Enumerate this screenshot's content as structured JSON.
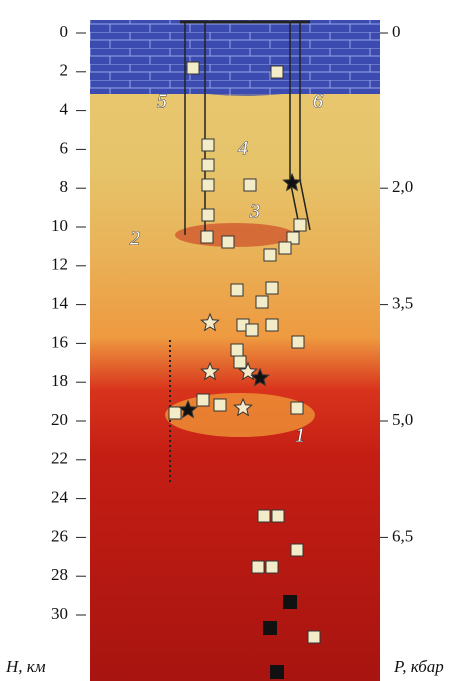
{
  "left_axis": {
    "title": "H, км",
    "ticks": [
      0,
      2,
      4,
      6,
      8,
      10,
      12,
      14,
      16,
      18,
      20,
      22,
      24,
      26,
      28,
      30
    ]
  },
  "right_axis": {
    "title": "P, кбар",
    "ticks": [
      0,
      {
        "value": 2.0,
        "label": "2,0"
      },
      {
        "value": 3.5,
        "label": "3,5"
      },
      {
        "value": 5.0,
        "label": "5,0"
      },
      {
        "value": 6.5,
        "label": "6,5"
      }
    ]
  },
  "labels": [
    "1",
    "2",
    "3",
    "4",
    "5",
    "6"
  ]
}
